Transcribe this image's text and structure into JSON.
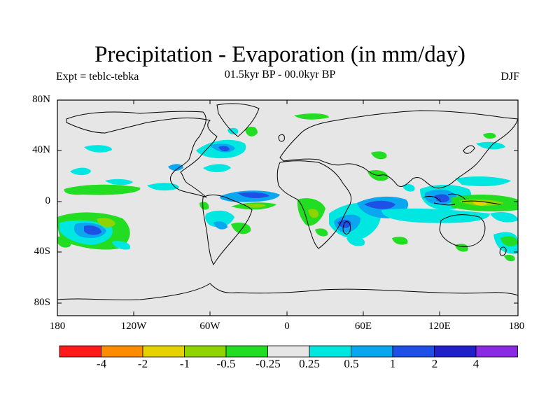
{
  "title": "Precipitation - Evaporation (in mm/day)",
  "subtitle_left": "Expt = teblc-tebka",
  "subtitle_center": "01.5kyr BP - 00.0kyr BP",
  "subtitle_right": "DJF",
  "lat_labels": [
    "80N",
    "40N",
    "0",
    "40S",
    "80S"
  ],
  "lon_labels": [
    "180",
    "120W",
    "60W",
    "0",
    "60E",
    "120E",
    "180"
  ],
  "colorbar": {
    "colors": [
      "#ff1a1a",
      "#ff8c00",
      "#e6d200",
      "#8fd400",
      "#22dd22",
      "#e6e6e6",
      "#00e6e0",
      "#0aa6f0",
      "#1e50e6",
      "#2020c8",
      "#8a2be2"
    ],
    "labels": [
      "-4",
      "-2",
      "-1",
      "-0.5",
      "-0.25",
      "0.25",
      "0.5",
      "1",
      "2",
      "4"
    ]
  },
  "map": {
    "background": "#e6e6e6"
  }
}
